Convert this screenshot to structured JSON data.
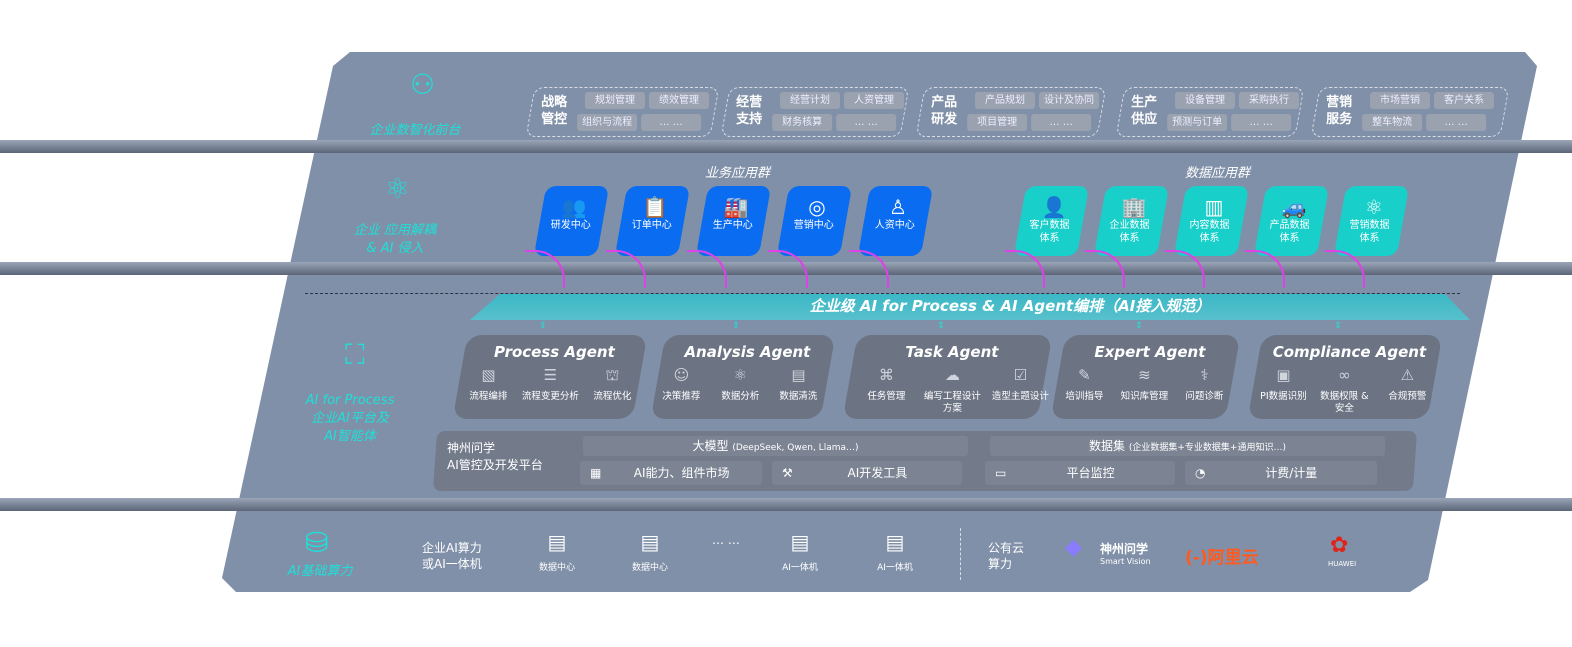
{
  "front": {
    "label": "企业数智化前台",
    "icon": "brain-icon",
    "groups": [
      {
        "title": [
          "战略",
          "管控"
        ],
        "items": [
          "规划管理",
          "绩效管理",
          "组织与流程",
          "… …"
        ]
      },
      {
        "title": [
          "经营",
          "支持"
        ],
        "items": [
          "经营计划",
          "人资管理",
          "财务核算",
          "… …"
        ]
      },
      {
        "title": [
          "产品",
          "研发"
        ],
        "items": [
          "产品规划",
          "设计及协同",
          "项目管理",
          "… …"
        ]
      },
      {
        "title": [
          "生产",
          "供应"
        ],
        "items": [
          "设备管理",
          "采购执行",
          "预测与订单",
          "… …"
        ]
      },
      {
        "title": [
          "营销",
          "服务"
        ],
        "items": [
          "市场营销",
          "客户关系",
          "整车物流",
          "… …"
        ]
      }
    ]
  },
  "apps": {
    "label": [
      "企业 应用解耦",
      "& AI 侵入"
    ],
    "icon": "molecule-icon",
    "business_title": "业务应用群",
    "business": [
      {
        "label": "研发中心",
        "icon": "users-icon"
      },
      {
        "label": "订单中心",
        "icon": "clipboard-icon"
      },
      {
        "label": "生产中心",
        "icon": "factory-icon"
      },
      {
        "label": "营销中心",
        "icon": "target-icon"
      },
      {
        "label": "人资中心",
        "icon": "person-icon"
      }
    ],
    "data_title": "数据应用群",
    "data": [
      {
        "l1": "客户数据",
        "l2": "体系",
        "icon": "user-icon"
      },
      {
        "l1": "企业数据",
        "l2": "体系",
        "icon": "building-icon"
      },
      {
        "l1": "内容数据",
        "l2": "体系",
        "icon": "books-icon"
      },
      {
        "l1": "产品数据",
        "l2": "体系",
        "icon": "car-icon"
      },
      {
        "l1": "营销数据",
        "l2": "体系",
        "icon": "atom-icon"
      }
    ]
  },
  "banner": "企业级 AI for Process & AI Agent编排（AI接入规范）",
  "ai": {
    "label": [
      "AI for Process",
      "企业AI平台及",
      "AI智能体"
    ],
    "icon": "face-scan-icon",
    "agents": [
      {
        "title": "Process Agent",
        "features": [
          {
            "label": "流程编排",
            "icon": "chart-icon"
          },
          {
            "label": "流程变更分析",
            "icon": "list-icon"
          },
          {
            "label": "流程优化",
            "icon": "cake-icon"
          }
        ]
      },
      {
        "title": "Analysis Agent",
        "features": [
          {
            "label": "决策推荐",
            "icon": "head-icon"
          },
          {
            "label": "数据分析",
            "icon": "atom-icon"
          },
          {
            "label": "数据清洗",
            "icon": "doc-icon"
          }
        ]
      },
      {
        "title": "Task Agent",
        "features": [
          {
            "label": "任务管理",
            "icon": "network-icon"
          },
          {
            "label": "编写工程设计方案",
            "icon": "cloud-icon"
          },
          {
            "label": "造型主题设计",
            "icon": "checklist-icon"
          }
        ]
      },
      {
        "title": "Expert Agent",
        "features": [
          {
            "label": "培训指导",
            "icon": "tools-icon"
          },
          {
            "label": "知识库管理",
            "icon": "layers-icon"
          },
          {
            "label": "问题诊断",
            "icon": "diagnose-icon"
          }
        ]
      },
      {
        "title": "Compliance Agent",
        "features": [
          {
            "label": "PI数据识别",
            "icon": "id-card-icon"
          },
          {
            "label": "数据权限 & 安全",
            "icon": "link-icon"
          },
          {
            "label": "合规预警",
            "icon": "alert-icon"
          }
        ]
      }
    ]
  },
  "platform": {
    "label": [
      "神州问学",
      "AI管控及开发平台"
    ],
    "llm_title": "大模型",
    "llm_note": "(DeepSeek, Qwen, Llama…)",
    "ds_title": "数据集",
    "ds_note": "(企业数据集+专业数据集+通用知识…)",
    "tools": [
      {
        "label": "AI能力、组件市场",
        "icon": "market-icon"
      },
      {
        "label": "AI开发工具",
        "icon": "dev-tool-icon"
      },
      {
        "label": "平台监控",
        "icon": "monitor-icon"
      },
      {
        "label": "计费/计量",
        "icon": "gauge-icon"
      }
    ]
  },
  "infra": {
    "label": "AI基础算力",
    "icon": "database-icon",
    "local_label": [
      "企业AI算力",
      "或AI一体机"
    ],
    "items": [
      "数据中心",
      "数据中心",
      "AI一体机",
      "AI一体机"
    ],
    "ellipsis": "… …",
    "public_label": [
      "公有云",
      "算力"
    ],
    "vendors": [
      {
        "name": "神州问学",
        "sub": "Smart Vision",
        "color": "#ffffff"
      },
      {
        "name": "(-)阿里云",
        "color": "#ff5a1f"
      },
      {
        "name": "HUAWEI",
        "color": "#e2231a"
      }
    ]
  }
}
